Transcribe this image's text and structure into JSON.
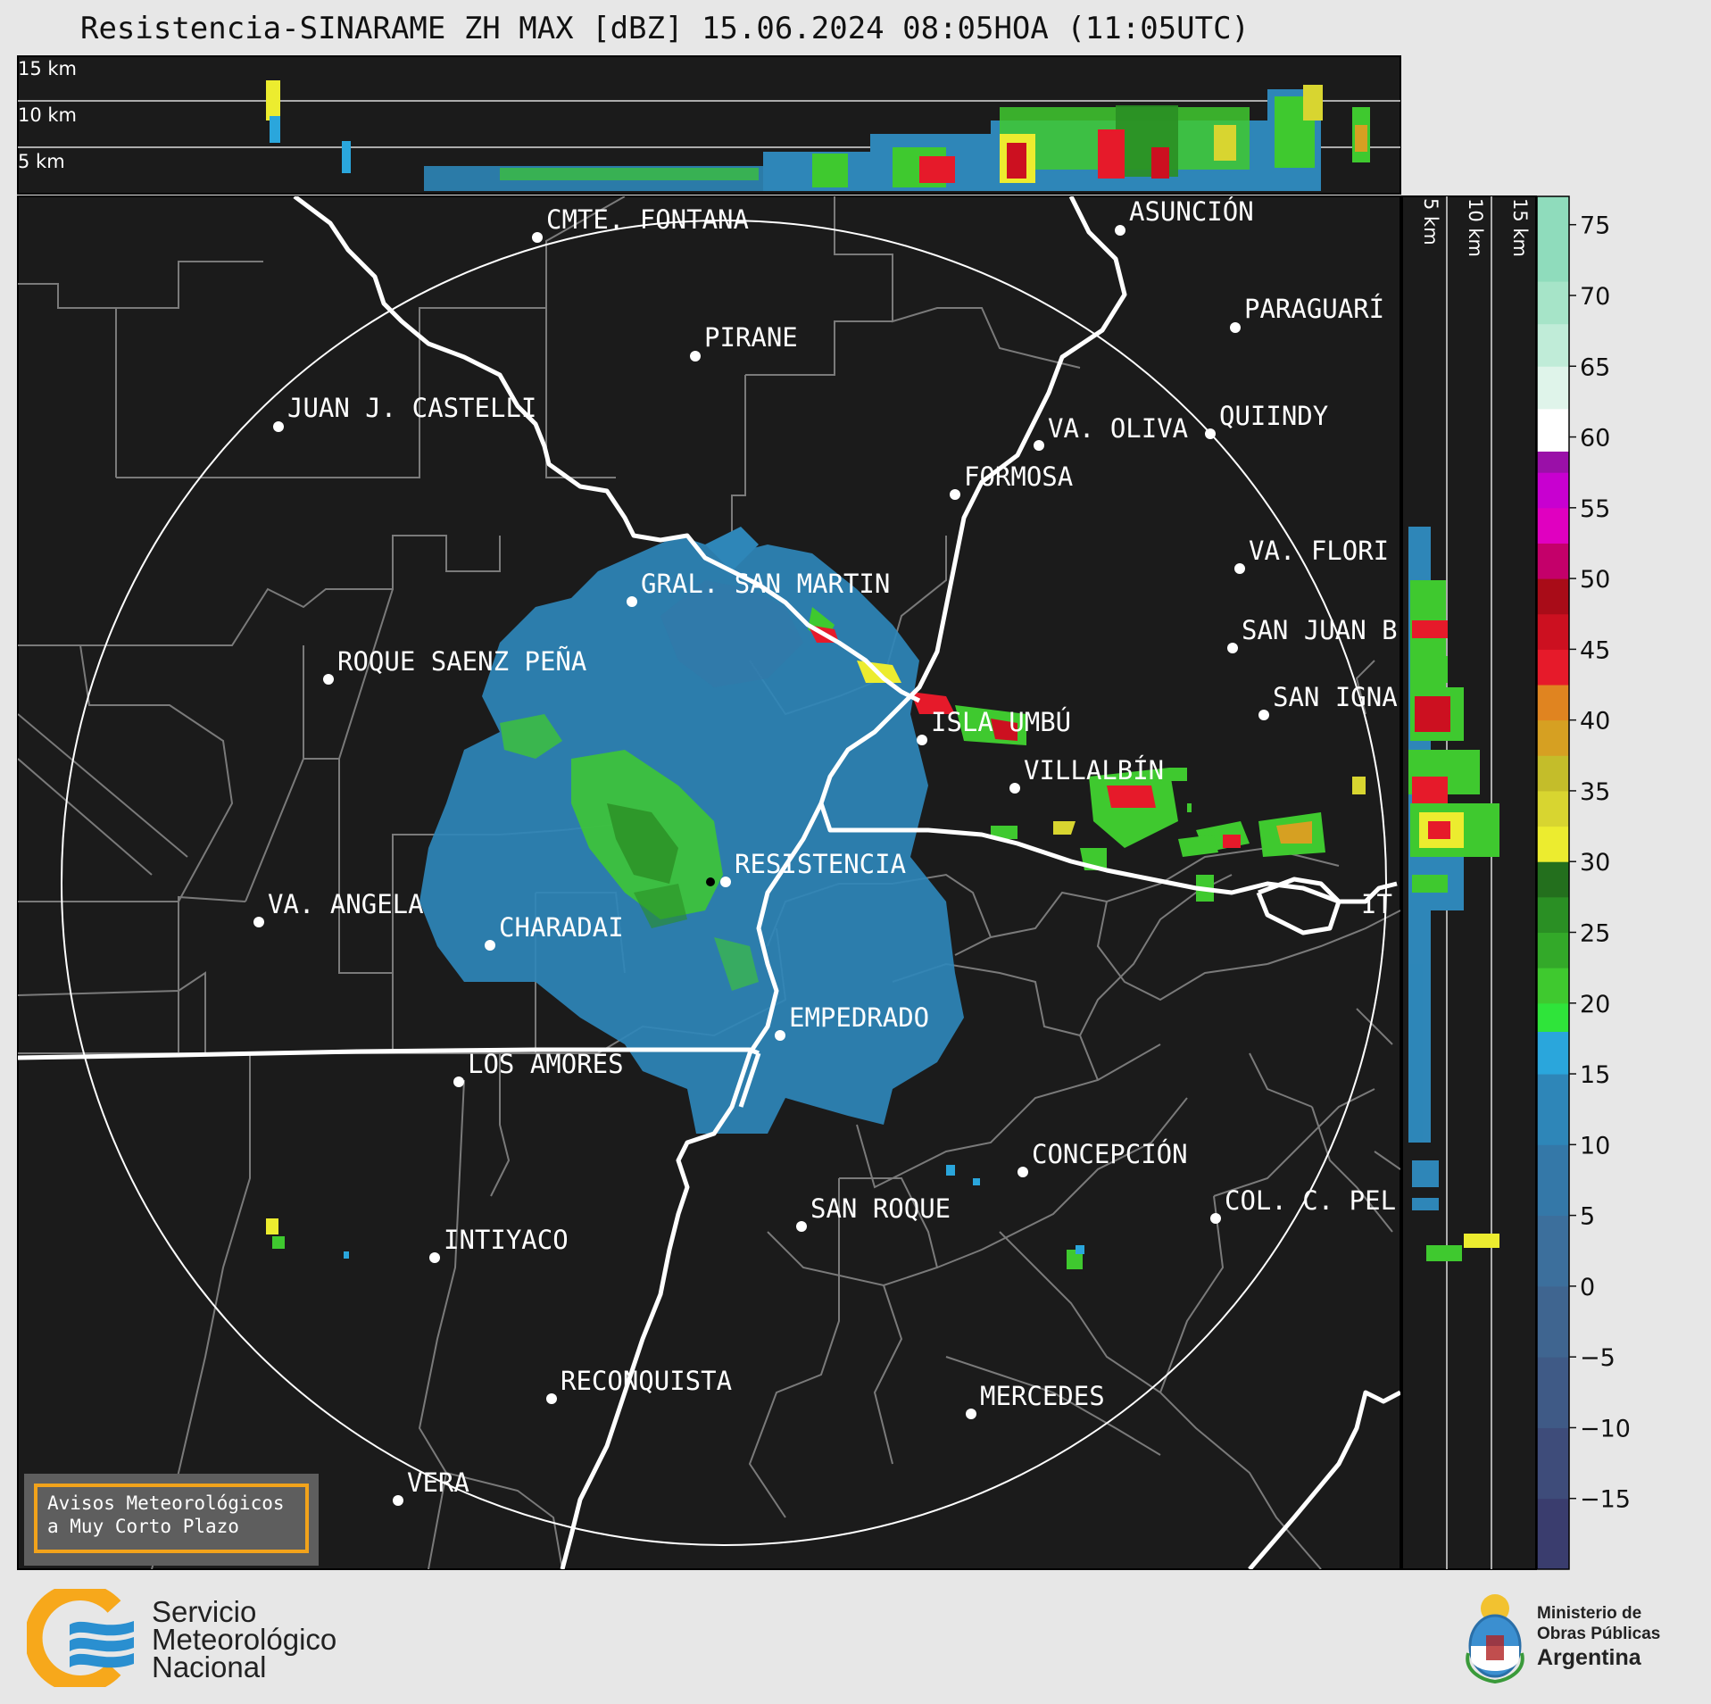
{
  "title": "Resistencia-SINARAME ZH MAX [dBZ] 15.06.2024 08:05HOA (11:05UTC)",
  "top_panel_labels": [
    "15 km",
    "10 km",
    "5 km"
  ],
  "side_panel_labels": [
    "5 km",
    "10 km",
    "15 km"
  ],
  "cities": [
    {
      "name": "CMTE. FONTANA"
    },
    {
      "name": "ASUNCIÓN"
    },
    {
      "name": "PARAGUARÍ"
    },
    {
      "name": "PIRANE"
    },
    {
      "name": "JUAN J. CASTELLI"
    },
    {
      "name": "VA. OLIVA"
    },
    {
      "name": "QUIINDY"
    },
    {
      "name": "FORMOSA"
    },
    {
      "name": "VA. FLORI"
    },
    {
      "name": "GRAL. SAN MARTIN"
    },
    {
      "name": "SAN JUAN B"
    },
    {
      "name": "ROQUE SAENZ PEÑA"
    },
    {
      "name": "SAN IGNA"
    },
    {
      "name": "ISLA UMBÚ"
    },
    {
      "name": "VILLALBÍN"
    },
    {
      "name": "RESISTENCIA"
    },
    {
      "name": "VA. ANGELA"
    },
    {
      "name": "CHARADAI"
    },
    {
      "name": "IT"
    },
    {
      "name": "EMPEDRADO"
    },
    {
      "name": "LOS AMORES"
    },
    {
      "name": "CONCEPCIÓN"
    },
    {
      "name": "SAN ROQUE"
    },
    {
      "name": "COL. C. PEL"
    },
    {
      "name": "INTIYACO"
    },
    {
      "name": "RECONQUISTA"
    },
    {
      "name": "MERCEDES"
    },
    {
      "name": "VERA"
    }
  ],
  "colorbar": {
    "unit": "dBZ",
    "ticks": [
      "75",
      "70",
      "65",
      "60",
      "55",
      "50",
      "45",
      "40",
      "35",
      "30",
      "25",
      "20",
      "15",
      "10",
      "5",
      "0",
      "−5",
      "−10",
      "−15"
    ],
    "range": [
      -20,
      77
    ],
    "stops": [
      {
        "from": -20,
        "color": "#3a3d6e"
      },
      {
        "from": -15,
        "color": "#3e4c7a"
      },
      {
        "from": -10,
        "color": "#3f5a86"
      },
      {
        "from": -5,
        "color": "#3f6590"
      },
      {
        "from": 0,
        "color": "#3c6f9c"
      },
      {
        "from": 5,
        "color": "#3478a8"
      },
      {
        "from": 10,
        "color": "#2e86b8"
      },
      {
        "from": 15,
        "color": "#2aa6dc"
      },
      {
        "from": 18,
        "color": "#2fe43a"
      },
      {
        "from": 20,
        "color": "#3fc92f"
      },
      {
        "from": 22.5,
        "color": "#33a929"
      },
      {
        "from": 25,
        "color": "#2a8f24"
      },
      {
        "from": 27.5,
        "color": "#236f1d"
      },
      {
        "from": 30,
        "color": "#ecec2f"
      },
      {
        "from": 32.5,
        "color": "#d8d530"
      },
      {
        "from": 35,
        "color": "#c4bd2a"
      },
      {
        "from": 37.5,
        "color": "#d6a022"
      },
      {
        "from": 40,
        "color": "#e08420"
      },
      {
        "from": 42.5,
        "color": "#e61a2a"
      },
      {
        "from": 45,
        "color": "#cc1020"
      },
      {
        "from": 47.5,
        "color": "#a90c18"
      },
      {
        "from": 50,
        "color": "#c4006a"
      },
      {
        "from": 52.5,
        "color": "#e000c0"
      },
      {
        "from": 55,
        "color": "#c800d0"
      },
      {
        "from": 57.5,
        "color": "#9a10a8"
      },
      {
        "from": 59,
        "color": "#ffffff"
      },
      {
        "from": 62,
        "color": "#dff4ea"
      },
      {
        "from": 65,
        "color": "#c0ecd8"
      },
      {
        "from": 68,
        "color": "#a6e4c8"
      },
      {
        "from": 71,
        "color": "#8fdcbc"
      }
    ]
  },
  "warning_box": {
    "line1": "Avisos Meteorológicos",
    "line2": "a Muy Corto Plazo"
  },
  "logos": {
    "smn_line1": "Servicio",
    "smn_line2": "Meteorológico",
    "smn_line3": "Nacional",
    "ministry_line1": "Ministerio de",
    "ministry_line2": "Obras Públicas",
    "ministry_line3": "Argentina"
  }
}
